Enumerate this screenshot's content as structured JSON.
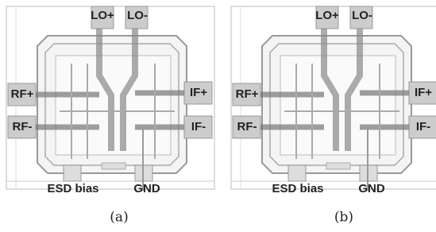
{
  "panels": [
    {
      "caption": "(a)",
      "pads": {
        "lo_plus": "LO+",
        "lo_minus": "LO-",
        "rf_plus": "RF+",
        "if_plus": "IF+",
        "rf_minus": "RF-",
        "if_minus": "IF-",
        "esd_bias": "ESD bias",
        "gnd": "GND"
      }
    },
    {
      "caption": "(b)",
      "pads": {
        "lo_plus": "LO+",
        "lo_minus": "LO-",
        "rf_plus": "RF+",
        "if_plus": "IF+",
        "rf_minus": "RF-",
        "if_minus": "IF-",
        "esd_bias": "ESD bias",
        "gnd": "GND"
      }
    }
  ]
}
